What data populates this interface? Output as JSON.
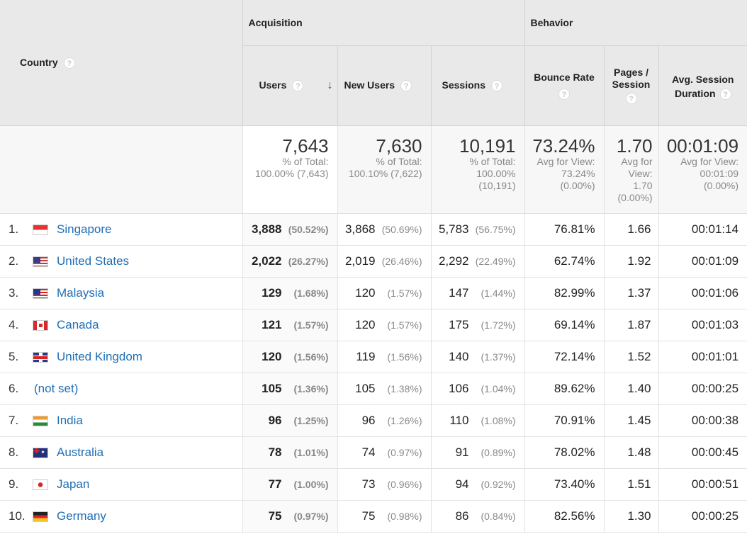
{
  "header": {
    "country": "Country",
    "acquisition": "Acquisition",
    "behavior": "Behavior",
    "users": "Users",
    "new_users": "New Users",
    "sessions": "Sessions",
    "bounce_rate": "Bounce Rate",
    "pages_session": "Pages /\nSession",
    "avg_session_duration": "Avg. Session\nDuration",
    "help": "?",
    "sort": "↓"
  },
  "totals": {
    "users": {
      "value": "7,643",
      "sub": "% of Total:\n100.00% (7,643)"
    },
    "new_users": {
      "value": "7,630",
      "sub": "% of Total:\n100.10% (7,622)"
    },
    "sessions": {
      "value": "10,191",
      "sub": "% of Total:\n100.00%\n(10,191)"
    },
    "bounce_rate": {
      "value": "73.24%",
      "sub": "Avg for View:\n73.24%\n(0.00%)"
    },
    "pages_session": {
      "value": "1.70",
      "sub": "Avg for\nView:\n1.70\n(0.00%)"
    },
    "avg_session_duration": {
      "value": "00:01:09",
      "sub": "Avg for View:\n00:01:09\n(0.00%)"
    }
  },
  "rows": [
    {
      "idx": "1.",
      "flag": "sg-flag-icon",
      "country": "Singapore",
      "users": "3,888",
      "users_pct": "(50.52%)",
      "new_users": "3,868",
      "new_users_pct": "(50.69%)",
      "sessions": "5,783",
      "sessions_pct": "(56.75%)",
      "bounce": "76.81%",
      "pages": "1.66",
      "duration": "00:01:14"
    },
    {
      "idx": "2.",
      "flag": "us-flag-icon",
      "country": "United States",
      "users": "2,022",
      "users_pct": "(26.27%)",
      "new_users": "2,019",
      "new_users_pct": "(26.46%)",
      "sessions": "2,292",
      "sessions_pct": "(22.49%)",
      "bounce": "62.74%",
      "pages": "1.92",
      "duration": "00:01:09"
    },
    {
      "idx": "3.",
      "flag": "my-flag-icon",
      "country": "Malaysia",
      "users": "129",
      "users_pct": "(1.68%)",
      "new_users": "120",
      "new_users_pct": "(1.57%)",
      "sessions": "147",
      "sessions_pct": "(1.44%)",
      "bounce": "82.99%",
      "pages": "1.37",
      "duration": "00:01:06"
    },
    {
      "idx": "4.",
      "flag": "ca-flag-icon",
      "country": "Canada",
      "users": "121",
      "users_pct": "(1.57%)",
      "new_users": "120",
      "new_users_pct": "(1.57%)",
      "sessions": "175",
      "sessions_pct": "(1.72%)",
      "bounce": "69.14%",
      "pages": "1.87",
      "duration": "00:01:03"
    },
    {
      "idx": "5.",
      "flag": "uk-flag-icon",
      "country": "United Kingdom",
      "users": "120",
      "users_pct": "(1.56%)",
      "new_users": "119",
      "new_users_pct": "(1.56%)",
      "sessions": "140",
      "sessions_pct": "(1.37%)",
      "bounce": "72.14%",
      "pages": "1.52",
      "duration": "00:01:01"
    },
    {
      "idx": "6.",
      "flag": "",
      "country": "(not set)",
      "users": "105",
      "users_pct": "(1.36%)",
      "new_users": "105",
      "new_users_pct": "(1.38%)",
      "sessions": "106",
      "sessions_pct": "(1.04%)",
      "bounce": "89.62%",
      "pages": "1.40",
      "duration": "00:00:25"
    },
    {
      "idx": "7.",
      "flag": "in-flag-icon",
      "country": "India",
      "users": "96",
      "users_pct": "(1.25%)",
      "new_users": "96",
      "new_users_pct": "(1.26%)",
      "sessions": "110",
      "sessions_pct": "(1.08%)",
      "bounce": "70.91%",
      "pages": "1.45",
      "duration": "00:00:38"
    },
    {
      "idx": "8.",
      "flag": "au-flag-icon",
      "country": "Australia",
      "users": "78",
      "users_pct": "(1.01%)",
      "new_users": "74",
      "new_users_pct": "(0.97%)",
      "sessions": "91",
      "sessions_pct": "(0.89%)",
      "bounce": "78.02%",
      "pages": "1.48",
      "duration": "00:00:45"
    },
    {
      "idx": "9.",
      "flag": "jp-flag-icon",
      "country": "Japan",
      "users": "77",
      "users_pct": "(1.00%)",
      "new_users": "73",
      "new_users_pct": "(0.96%)",
      "sessions": "94",
      "sessions_pct": "(0.92%)",
      "bounce": "73.40%",
      "pages": "1.51",
      "duration": "00:00:51"
    },
    {
      "idx": "10.",
      "flag": "de-flag-icon",
      "country": "Germany",
      "users": "75",
      "users_pct": "(0.97%)",
      "new_users": "75",
      "new_users_pct": "(0.98%)",
      "sessions": "86",
      "sessions_pct": "(0.84%)",
      "bounce": "82.56%",
      "pages": "1.30",
      "duration": "00:00:25"
    }
  ]
}
